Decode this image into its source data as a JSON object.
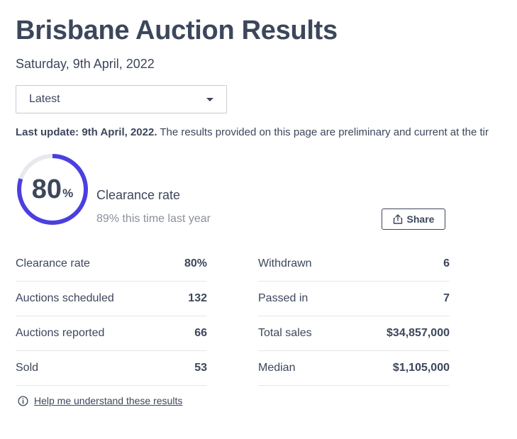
{
  "header": {
    "title": "Brisbane Auction Results",
    "date": "Saturday, 9th April, 2022"
  },
  "selector": {
    "selected": "Latest",
    "icon": "chevron-down-icon"
  },
  "update": {
    "bold": "Last update: 9th April, 2022.",
    "text": " The results provided on this page are preliminary and current at the tir"
  },
  "clearance": {
    "value": "80",
    "unit": "%",
    "fraction": 0.8,
    "label": "Clearance rate",
    "last_year": "89% this time last year",
    "ring_color": "#4b3fe0",
    "track_color": "#e8e9ee"
  },
  "share": {
    "label": "Share",
    "icon": "share-icon"
  },
  "stats": {
    "left": [
      {
        "label": "Clearance rate",
        "value": "80%"
      },
      {
        "label": "Auctions scheduled",
        "value": "132"
      },
      {
        "label": "Auctions reported",
        "value": "66"
      },
      {
        "label": "Sold",
        "value": "53"
      }
    ],
    "right": [
      {
        "label": "Withdrawn",
        "value": "6"
      },
      {
        "label": "Passed in",
        "value": "7"
      },
      {
        "label": "Total sales",
        "value": "$34,857,000"
      },
      {
        "label": "Median",
        "value": "$1,105,000"
      }
    ]
  },
  "help": {
    "label": "Help me understand these results",
    "icon": "info-icon"
  }
}
